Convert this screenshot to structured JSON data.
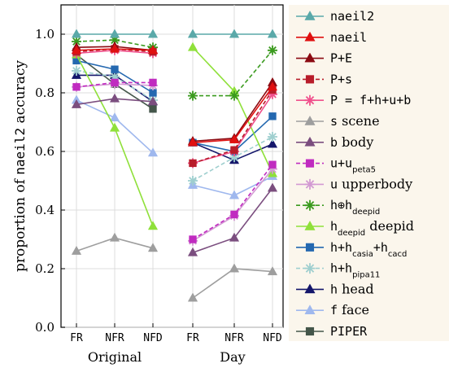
{
  "chart_data": {
    "type": "line",
    "ylabel": {
      "prefix": "proportion of ",
      "mono": "naeil2",
      "suffix": " accuracy"
    },
    "ylim": [
      0.0,
      1.1
    ],
    "yticks": [
      "0.0",
      "0.2",
      "0.4",
      "0.6",
      "0.8",
      "1.0"
    ],
    "ytick_values": [
      0.0,
      0.2,
      0.4,
      0.6,
      0.8,
      1.0
    ],
    "grid": true,
    "legend_position": "right",
    "groups": [
      {
        "label": "Original",
        "categories": [
          "FR",
          "NFR",
          "NFD"
        ]
      },
      {
        "label": "Day",
        "categories": [
          "FR",
          "NFR",
          "NFD"
        ]
      }
    ],
    "series": [
      {
        "name": "naeil2",
        "color": "#5aa9a9",
        "marker": "triangle",
        "dash": false,
        "values": [
          [
            1.0,
            1.0,
            1.0
          ],
          [
            1.0,
            1.0,
            1.0
          ]
        ]
      },
      {
        "name": "naeil",
        "color": "#e01010",
        "marker": "triangle",
        "dash": false,
        "values": [
          [
            0.945,
            0.95,
            0.945
          ],
          [
            0.63,
            0.64,
            0.82
          ]
        ]
      },
      {
        "name": "P+E",
        "color": "#8b0a12",
        "marker": "triangle",
        "dash": false,
        "values": [
          [
            0.955,
            0.958,
            0.945
          ],
          [
            0.635,
            0.645,
            0.835
          ]
        ]
      },
      {
        "name": "P+s",
        "color": "#b81c2a",
        "marker": "square",
        "dash": true,
        "values": [
          [
            0.94,
            0.95,
            0.94
          ],
          [
            0.56,
            0.605,
            0.81
          ]
        ]
      },
      {
        "name": "P = f+h+u+b",
        "color": "#f0508c",
        "marker": "star",
        "dash": false,
        "values": [
          [
            0.935,
            0.945,
            0.935
          ],
          [
            0.56,
            0.6,
            0.795
          ]
        ]
      },
      {
        "name": "s scene",
        "color": "#9e9e9e",
        "marker": "triangle",
        "dash": false,
        "values": [
          [
            0.26,
            0.305,
            0.27
          ],
          [
            0.1,
            0.2,
            0.19
          ]
        ]
      },
      {
        "name": "b body",
        "color": "#7b4e7f",
        "marker": "triangle",
        "dash": false,
        "values": [
          [
            0.76,
            0.78,
            0.77
          ],
          [
            0.255,
            0.305,
            0.475
          ]
        ]
      },
      {
        "name": "u+u_peta5",
        "color": "#c02bc0",
        "marker": "square",
        "dash": true,
        "values": [
          [
            0.82,
            0.835,
            0.835
          ],
          [
            0.3,
            0.385,
            0.555
          ]
        ]
      },
      {
        "name": "u upperbody",
        "color": "#d39ad3",
        "marker": "star",
        "dash": false,
        "values": [
          [
            0.82,
            0.83,
            0.825
          ],
          [
            0.295,
            0.38,
            0.54
          ]
        ]
      },
      {
        "name": "h⊕h_deepid",
        "color": "#3a9a1e",
        "marker": "star",
        "dash": true,
        "values": [
          [
            0.975,
            0.98,
            0.955
          ],
          [
            0.79,
            0.79,
            0.945
          ]
        ]
      },
      {
        "name": "h_deepid deepid",
        "color": "#8fe03a",
        "marker": "triangle",
        "dash": false,
        "values": [
          [
            0.93,
            0.68,
            0.345
          ],
          [
            0.955,
            0.805,
            0.525
          ]
        ]
      },
      {
        "name": "h+h_casia+h_cacd",
        "color": "#2468b0",
        "marker": "square",
        "dash": false,
        "values": [
          [
            0.91,
            0.88,
            0.8
          ],
          [
            0.63,
            0.6,
            0.72
          ]
        ]
      },
      {
        "name": "h+h_pipa11",
        "color": "#9fcfcf",
        "marker": "star",
        "dash": true,
        "values": [
          [
            0.875,
            0.855,
            0.775
          ],
          [
            0.5,
            0.58,
            0.65
          ]
        ]
      },
      {
        "name": "h head",
        "color": "#14166b",
        "marker": "triangle",
        "dash": false,
        "values": [
          [
            0.86,
            0.86,
            0.77
          ],
          [
            0.63,
            0.57,
            0.625
          ]
        ]
      },
      {
        "name": "f face",
        "color": "#9fb8ee",
        "marker": "triangle",
        "dash": false,
        "values": [
          [
            0.775,
            0.715,
            0.595
          ],
          [
            0.485,
            0.45,
            0.515
          ]
        ]
      },
      {
        "name": "PIPER",
        "color": "#44564a",
        "marker": "square",
        "dash": false,
        "values": [
          [
            0.93,
            0.83,
            0.745
          ],
          [
            null,
            null,
            null
          ]
        ]
      }
    ],
    "legend": [
      {
        "parts": [
          {
            "t": "naeil2",
            "s": "mono"
          }
        ]
      },
      {
        "parts": [
          {
            "t": "naeil",
            "s": "mono"
          }
        ]
      },
      {
        "parts": [
          {
            "t": "P+E",
            "s": "mono"
          }
        ]
      },
      {
        "parts": [
          {
            "t": "P+s",
            "s": "mono"
          }
        ]
      },
      {
        "parts": [
          {
            "t": "P = f+h+u+b",
            "s": "mono"
          }
        ]
      },
      {
        "parts": [
          {
            "t": "s",
            "s": "mono"
          },
          {
            "t": " scene",
            "s": "serif"
          }
        ]
      },
      {
        "parts": [
          {
            "t": "b",
            "s": "mono"
          },
          {
            "t": " body",
            "s": "serif"
          }
        ]
      },
      {
        "parts": [
          {
            "t": "u+u",
            "s": "mono"
          },
          {
            "t": "peta5",
            "s": "sub"
          }
        ]
      },
      {
        "parts": [
          {
            "t": "u",
            "s": "mono"
          },
          {
            "t": " upperbody",
            "s": "serif"
          }
        ]
      },
      {
        "parts": [
          {
            "t": "h⊕h",
            "s": "mono"
          },
          {
            "t": "deepid",
            "s": "sub"
          }
        ]
      },
      {
        "parts": [
          {
            "t": "h",
            "s": "mono"
          },
          {
            "t": "deepid",
            "s": "sub"
          },
          {
            "t": " deepid",
            "s": "serif"
          }
        ]
      },
      {
        "parts": [
          {
            "t": "h+h",
            "s": "mono"
          },
          {
            "t": "casia",
            "s": "sub"
          },
          {
            "t": "+h",
            "s": "mono"
          },
          {
            "t": "cacd",
            "s": "sub"
          }
        ]
      },
      {
        "parts": [
          {
            "t": "h+h",
            "s": "mono"
          },
          {
            "t": "pipa11",
            "s": "sub"
          }
        ]
      },
      {
        "parts": [
          {
            "t": "h",
            "s": "mono"
          },
          {
            "t": " head",
            "s": "serif"
          }
        ]
      },
      {
        "parts": [
          {
            "t": "f",
            "s": "mono"
          },
          {
            "t": " face",
            "s": "serif"
          }
        ]
      },
      {
        "parts": [
          {
            "t": "PIPER",
            "s": "mono"
          }
        ]
      }
    ]
  }
}
